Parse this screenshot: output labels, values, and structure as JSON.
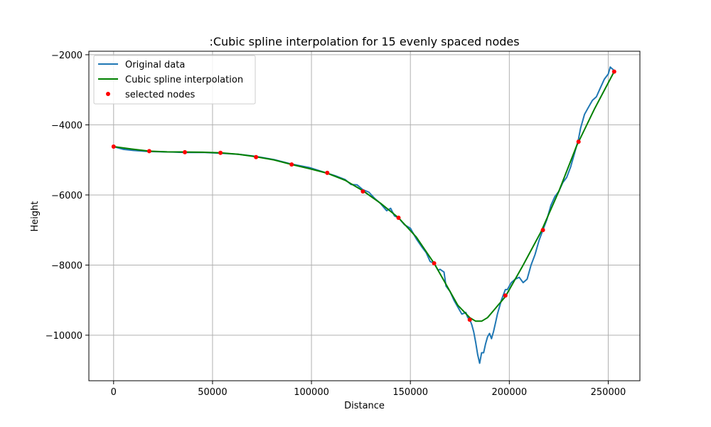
{
  "chart_data": {
    "type": "line",
    "title": ":Cubic spline interpolation for 15 evenly spaced nodes",
    "xlabel": "Distance",
    "ylabel": "Height",
    "xlim": [
      -12500,
      266000
    ],
    "ylim": [
      -11300,
      -1900
    ],
    "xticks": [
      0,
      50000,
      100000,
      150000,
      200000,
      250000
    ],
    "xtick_labels": [
      "0",
      "50000",
      "100000",
      "150000",
      "200000",
      "250000"
    ],
    "yticks": [
      -10000,
      -8000,
      -6000,
      -4000,
      -2000
    ],
    "ytick_labels": [
      "−10000",
      "−8000",
      "−6000",
      "−4000",
      "−2000"
    ],
    "grid": true,
    "legend_position": "top-left",
    "series": [
      {
        "name": "Original data",
        "kind": "line",
        "color": "#1f77b4",
        "x": [
          0,
          5000,
          10000,
          15000,
          18000,
          25000,
          30000,
          36000,
          45000,
          54000,
          63000,
          72000,
          81000,
          90000,
          99000,
          108000,
          112000,
          117000,
          120000,
          123000,
          126000,
          129000,
          132000,
          135000,
          138000,
          140000,
          142000,
          144000,
          147000,
          150000,
          153000,
          156000,
          158000,
          160000,
          162000,
          164000,
          165000,
          167000,
          168000,
          170000,
          172000,
          174000,
          176000,
          178000,
          179000,
          180000,
          181000,
          182000,
          183000,
          184000,
          185000,
          186000,
          187000,
          188000,
          189000,
          190000,
          191000,
          192000,
          193000,
          194000,
          196000,
          198000,
          199000,
          201000,
          203000,
          205000,
          207000,
          209000,
          211000,
          213000,
          215000,
          217000,
          219000,
          221000,
          223000,
          225000,
          227000,
          229000,
          231000,
          233000,
          235000,
          236000,
          238000,
          240000,
          242000,
          244000,
          246000,
          248000,
          250000,
          251000,
          252000,
          253000
        ],
        "y": [
          -4620,
          -4700,
          -4730,
          -4750,
          -4760,
          -4770,
          -4775,
          -4790,
          -4785,
          -4810,
          -4840,
          -4900,
          -4990,
          -5120,
          -5220,
          -5380,
          -5450,
          -5560,
          -5700,
          -5710,
          -5850,
          -5920,
          -6100,
          -6250,
          -6450,
          -6380,
          -6600,
          -6650,
          -6850,
          -6950,
          -7250,
          -7500,
          -7650,
          -7900,
          -7950,
          -8150,
          -8120,
          -8200,
          -8600,
          -8750,
          -9000,
          -9200,
          -9400,
          -9350,
          -9500,
          -9550,
          -9700,
          -9900,
          -10200,
          -10550,
          -10800,
          -10500,
          -10500,
          -10250,
          -10050,
          -9950,
          -10100,
          -9900,
          -9650,
          -9400,
          -9000,
          -8700,
          -8700,
          -8500,
          -8400,
          -8350,
          -8500,
          -8400,
          -8000,
          -7700,
          -7300,
          -7000,
          -6700,
          -6300,
          -6050,
          -5900,
          -5650,
          -5500,
          -5200,
          -4800,
          -4400,
          -4100,
          -3700,
          -3500,
          -3300,
          -3200,
          -2950,
          -2700,
          -2550,
          -2350,
          -2400,
          -2450
        ]
      },
      {
        "name": "Cubic spline interpolation",
        "kind": "line",
        "color": "#008000",
        "x": [
          0,
          9000,
          18000,
          27000,
          36000,
          45000,
          54000,
          63000,
          72000,
          81000,
          90000,
          99000,
          108000,
          117000,
          126000,
          135000,
          144000,
          153000,
          162000,
          168000,
          174000,
          180000,
          183000,
          186000,
          189000,
          192000,
          195000,
          198000,
          207000,
          216000,
          225000,
          234000,
          243000,
          253000
        ],
        "y": [
          -4620,
          -4690,
          -4750,
          -4770,
          -4775,
          -4780,
          -4800,
          -4840,
          -4910,
          -5000,
          -5130,
          -5250,
          -5380,
          -5580,
          -5880,
          -6240,
          -6650,
          -7200,
          -7950,
          -8550,
          -9150,
          -9500,
          -9600,
          -9600,
          -9500,
          -9300,
          -9100,
          -8900,
          -8000,
          -7050,
          -5900,
          -4600,
          -3550,
          -2480
        ]
      },
      {
        "name": "selected nodes",
        "kind": "scatter",
        "color": "#ff0000",
        "x": [
          0,
          18000,
          36000,
          54000,
          72000,
          90000,
          108000,
          126000,
          144000,
          162000,
          180000,
          198000,
          217000,
          235000,
          253000
        ],
        "y": [
          -4620,
          -4750,
          -4780,
          -4800,
          -4920,
          -5130,
          -5370,
          -5900,
          -6650,
          -7950,
          -9560,
          -8870,
          -7000,
          -4480,
          -2480
        ]
      }
    ]
  }
}
